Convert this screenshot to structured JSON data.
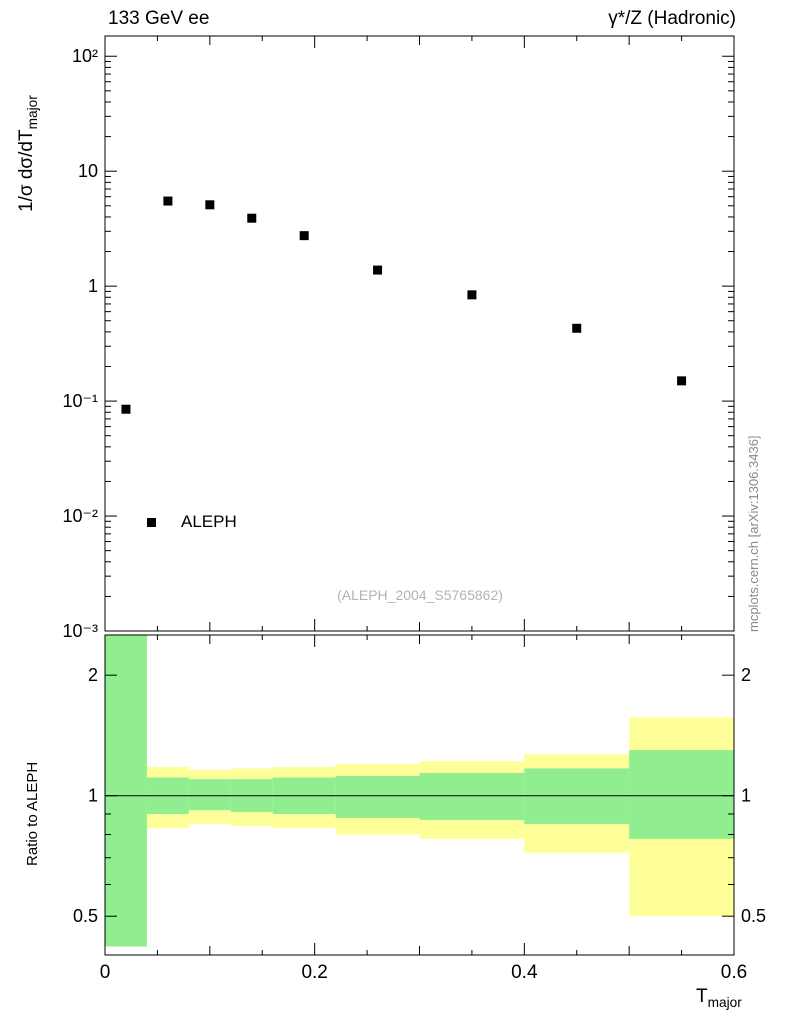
{
  "chart_data": {
    "type": "scatter",
    "title_left": "133 GeV ee",
    "title_right": "γ*/Z (Hadronic)",
    "xlabel_main": "T",
    "xlabel_sub": "major",
    "xlim": [
      0,
      0.6
    ],
    "xticks": [
      0,
      0.2,
      0.4,
      0.6
    ],
    "xtick_labels": [
      "0",
      "0.2",
      "0.4",
      "0.6"
    ],
    "main_panel": {
      "ylabel_main": "1/σ dσ/dT",
      "ylabel_sub": "major",
      "yscale": "log",
      "ylim": [
        0.001,
        150
      ],
      "ytick_exponents": [
        2,
        1,
        0,
        -1,
        -2,
        -3
      ],
      "ytick_labels": [
        "10²",
        "10",
        "1",
        "10⁻¹",
        "10⁻²",
        "10⁻³"
      ],
      "grid": false,
      "series": [
        {
          "name": "ALEPH",
          "marker": "filled-square",
          "color": "#000000",
          "x": [
            0.02,
            0.06,
            0.1,
            0.14,
            0.19,
            0.26,
            0.35,
            0.45,
            0.55
          ],
          "y": [
            0.085,
            5.5,
            5.1,
            3.9,
            2.75,
            1.38,
            0.84,
            0.43,
            0.15
          ]
        }
      ],
      "watermark": "(ALEPH_2004_S5765862)",
      "side_note": "mcplots.cern.ch [arXiv:1306.3436]"
    },
    "ratio_panel": {
      "ylabel": "Ratio to ALEPH",
      "yscale": "log",
      "ylim": [
        0.4,
        2.52
      ],
      "yticks": [
        0.5,
        1,
        2
      ],
      "ytick_labels": [
        "0.5",
        "1",
        "2"
      ],
      "reference_line": 1,
      "band_colors": {
        "outer": "#ffff99",
        "inner": "#90ee90"
      },
      "bin_edges": [
        0,
        0.04,
        0.08,
        0.12,
        0.16,
        0.22,
        0.3,
        0.4,
        0.5,
        0.6
      ],
      "outer_band": [
        [
          0.42,
          2.52
        ],
        [
          0.83,
          1.18
        ],
        [
          0.85,
          1.16
        ],
        [
          0.84,
          1.17
        ],
        [
          0.83,
          1.18
        ],
        [
          0.8,
          1.2
        ],
        [
          0.78,
          1.22
        ],
        [
          0.72,
          1.27
        ],
        [
          0.5,
          1.57
        ]
      ],
      "inner_band": [
        [
          0.42,
          2.52
        ],
        [
          0.9,
          1.11
        ],
        [
          0.92,
          1.1
        ],
        [
          0.91,
          1.1
        ],
        [
          0.9,
          1.11
        ],
        [
          0.88,
          1.12
        ],
        [
          0.87,
          1.14
        ],
        [
          0.85,
          1.17
        ],
        [
          0.78,
          1.3
        ]
      ]
    },
    "legend": {
      "label": "ALEPH"
    }
  }
}
